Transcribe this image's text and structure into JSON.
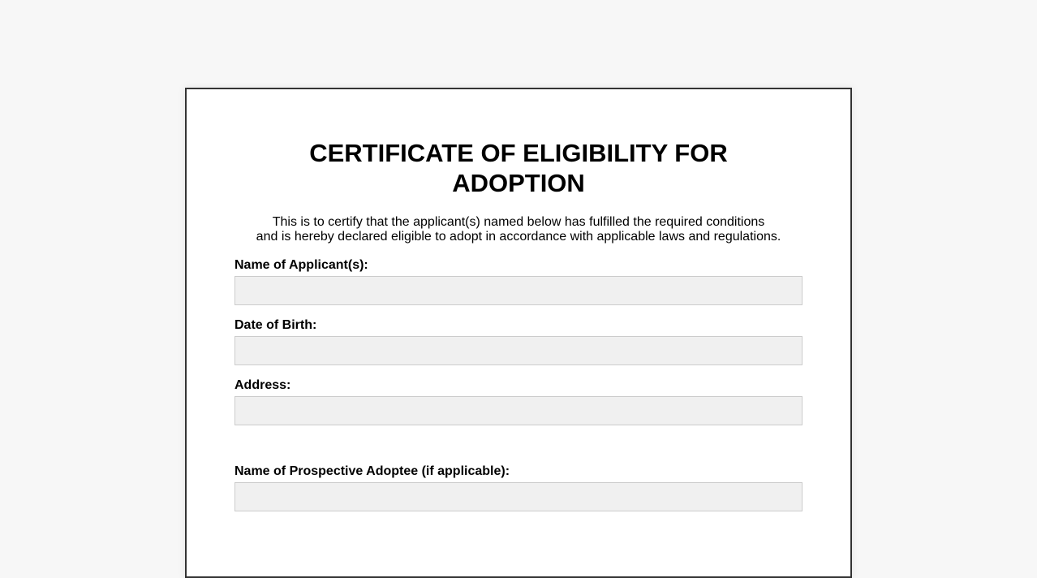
{
  "document": {
    "title_lines": [
      "CERTIFICATE OF ELIGIBILITY FOR",
      "ADOPTION"
    ],
    "intro_lines": [
      "This is to certify that the applicant(s) named below has fulfilled the required conditions",
      "and is hereby declared eligible to adopt in accordance with applicable laws and regulations."
    ],
    "fields": [
      {
        "label": "Name of Applicant(s):",
        "value": ""
      },
      {
        "label": "Date of Birth:",
        "value": ""
      },
      {
        "label": "Address:",
        "value": ""
      },
      {
        "label": "Name of Prospective Adoptee (if applicable):",
        "value": ""
      }
    ]
  }
}
